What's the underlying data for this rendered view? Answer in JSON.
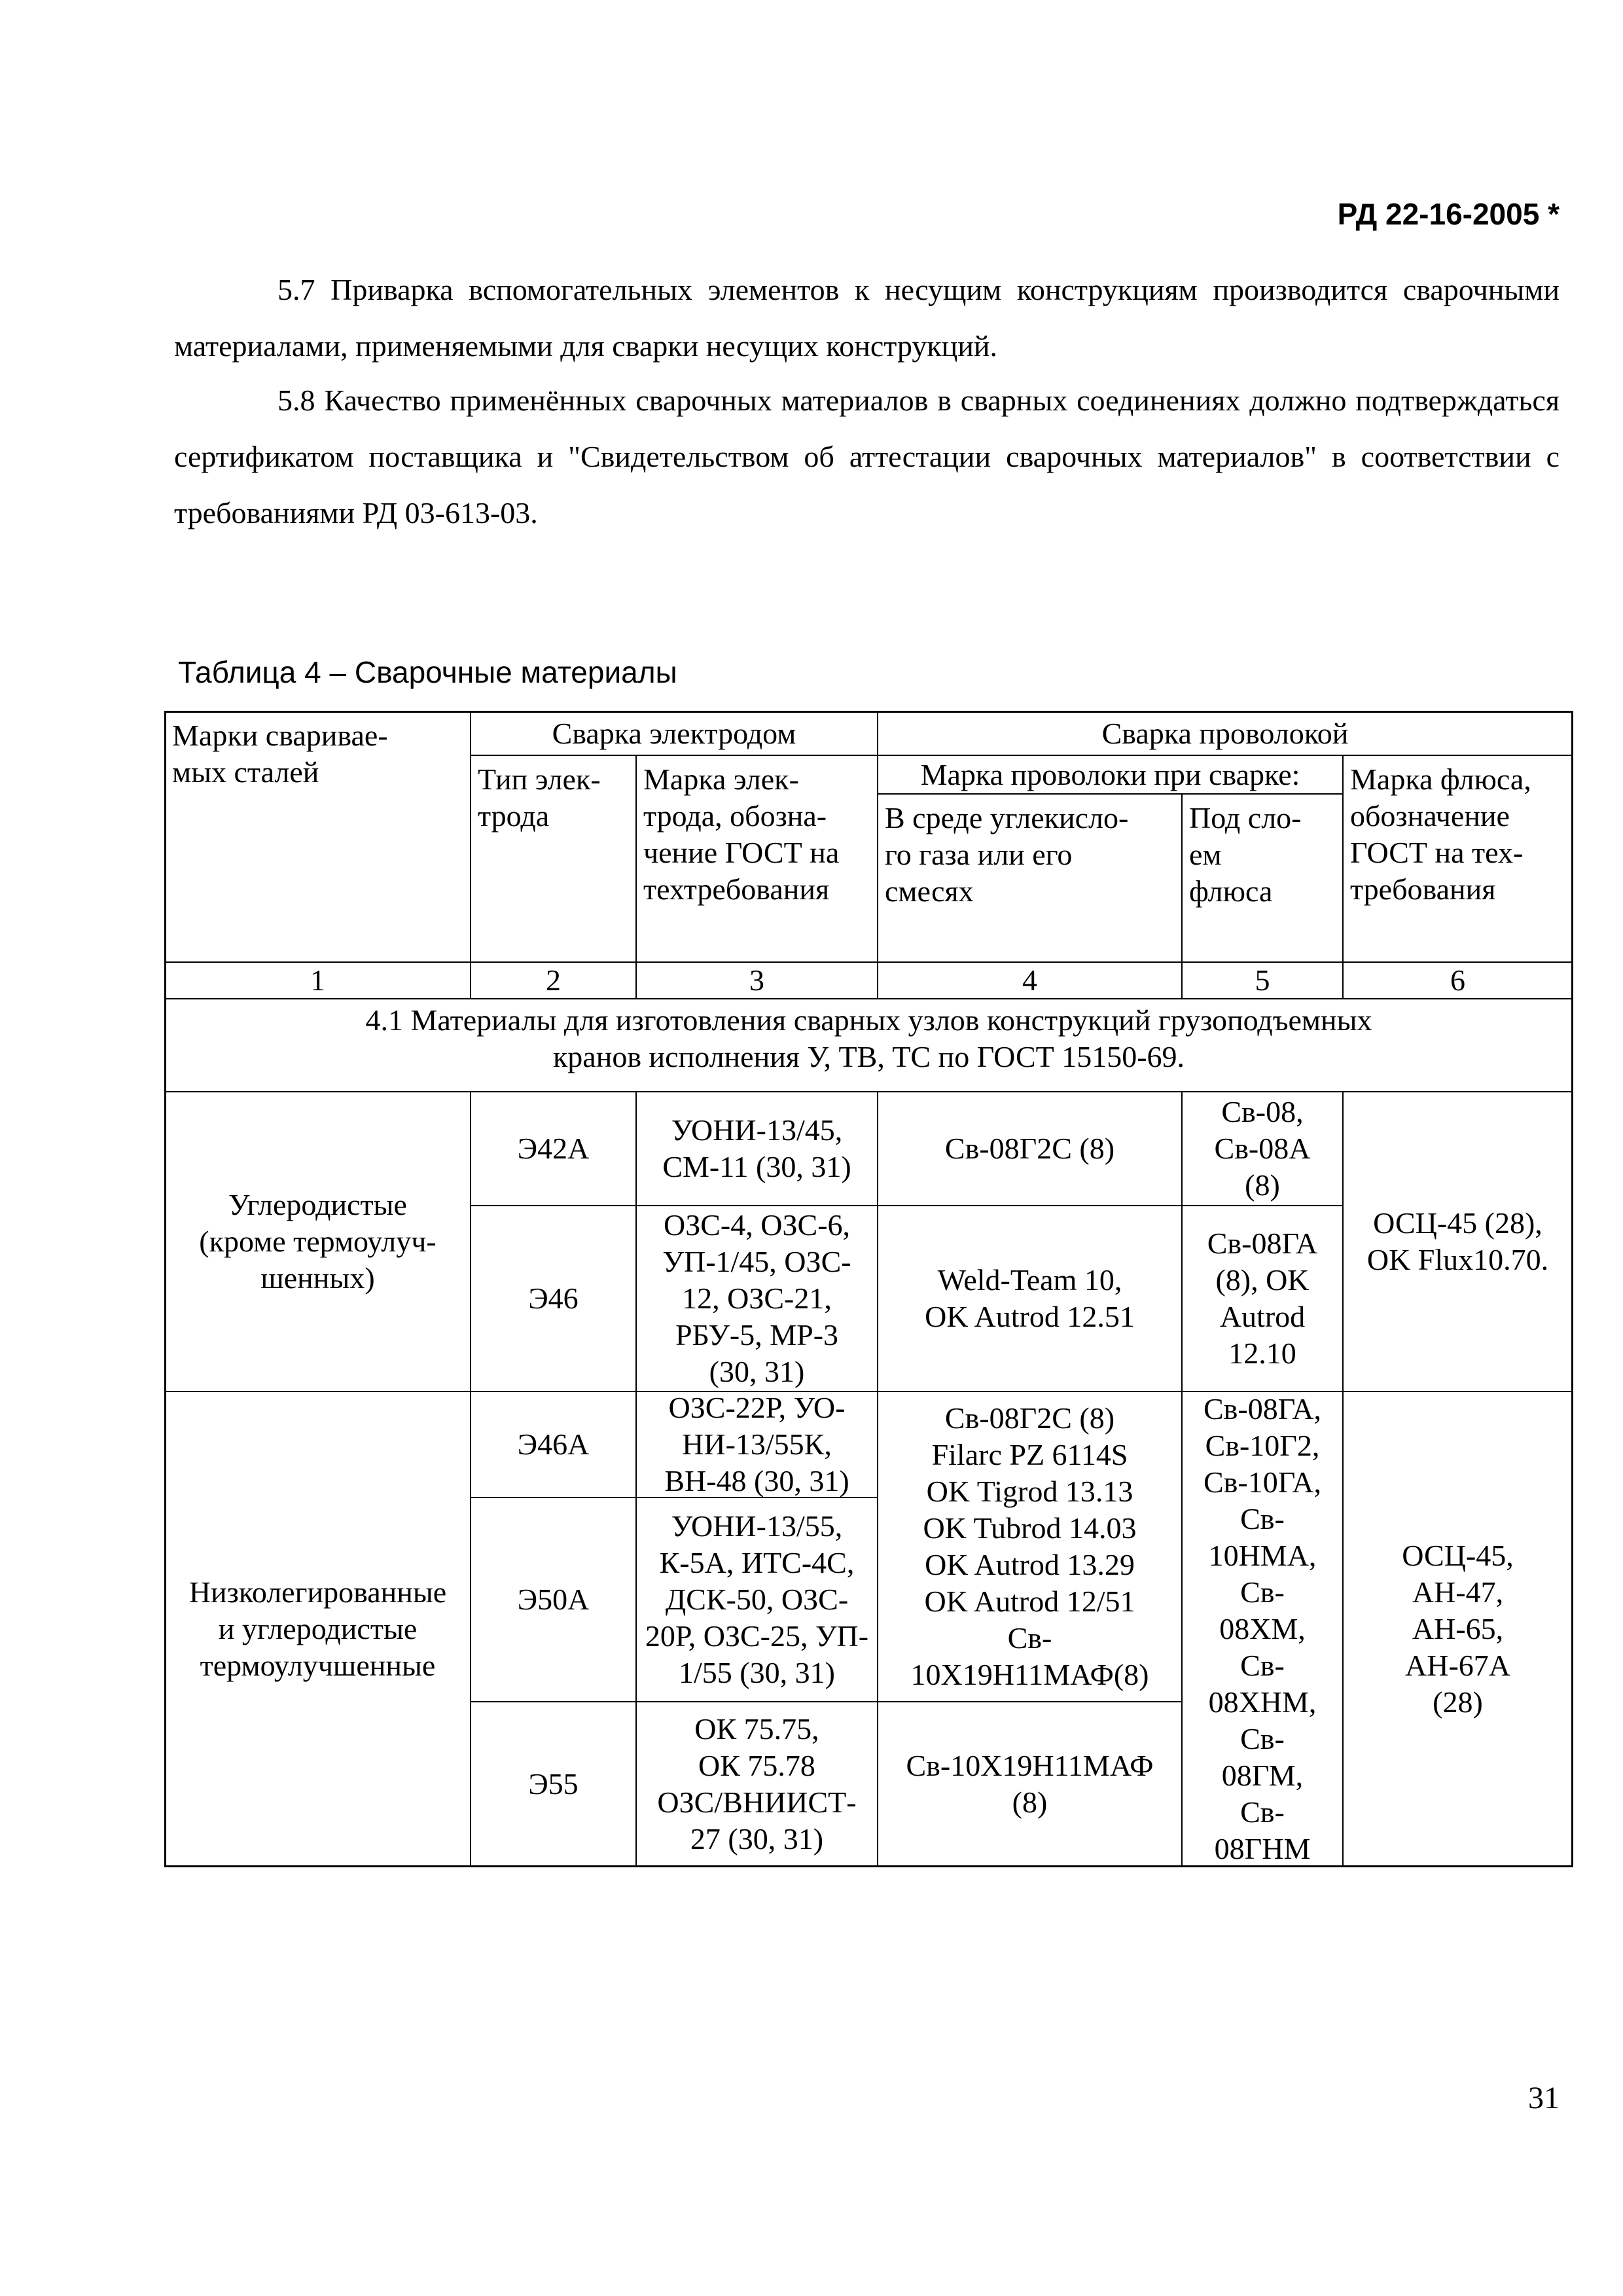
{
  "header": {
    "doc_code": "РД 22-16-2005 *"
  },
  "paragraphs": [
    "5.7 Приварка вспомогательных элементов к несущим конструкциям производится сварочными материалами, применяемыми для сварки несущих конструкций.",
    "5.8 Качество применённых сварочных материалов в сварных соединениях должно подтверждаться сертификатом поставщика и \"Свидетельством об аттестации сварочных материалов\" в соответствии с требованиями РД 03-613-03."
  ],
  "table": {
    "title": "Таблица 4 – Сварочные материалы",
    "headers": {
      "steel": "Марки сваривае-\nмых сталей",
      "electrode_group": "Сварка электродом",
      "wire_group": "Сварка проволокой",
      "electrode_type": "Тип элек-\nтрода",
      "electrode_brand": "Марка элек-\nтрода, обозна-\nчение ГОСТ на\nтехтребования",
      "wire_brand": "Марка проволоки при сварке:",
      "co2": "В среде углекисло-\nго газа или его\nсмесях",
      "flux_layer": "Под сло-\nем\nфлюса",
      "flux_brand": "Марка флюса,\nобозначение\nГОСТ на тех-\nтребования"
    },
    "column_numbers": [
      "1",
      "2",
      "3",
      "4",
      "5",
      "6"
    ],
    "section": "4.1 Материалы для изготовления сварных узлов конструкций грузоподъемных\nкранов исполнения У, ТВ, ТС по ГОСТ 15150-69.",
    "groups": [
      {
        "steel": "Углеродистые\n(кроме термоулуч-\nшенных)",
        "flux": "ОСЦ-45 (28),\nOK Flux10.70.",
        "rows": [
          {
            "type": "Э42А",
            "electrode": "УОНИ-13/45,\nСМ-11 (30, 31)",
            "co2": "Св-08Г2С (8)",
            "flux_wire": "Св-08,\nСв-08А\n(8)"
          },
          {
            "type": "Э46",
            "electrode": "ОЗС-4, ОЗС-6,\nУП-1/45, ОЗС-\n12, ОЗС-21,\nРБУ-5, МР-3\n(30, 31)",
            "co2": "Weld-Team 10,\nOK Autrod 12.51",
            "flux_wire": "Св-08ГА\n(8), OK\nAutrod\n12.10"
          }
        ]
      },
      {
        "steel": "Низколегированные\nи углеродистые\nтермоулучшенные",
        "flux": "ОСЦ-45,\nАН-47,\nАН-65,\nАН-67А\n(28)",
        "flux_wire": "Св-08ГА,\nСв-10Г2,\nСв-10ГА,\nСв-\n10НМА,\nСв-\n08ХМ,\nСв-\n08ХНМ,\nСв-\n08ГМ,\nСв-\n08ГНМ",
        "co2_merged": "Св-08Г2С (8)\nFilarc PZ 6114S\nOK Tigrod 13.13\nOK Tubrod 14.03\nOK Autrod 13.29\nOK Autrod 12/51\nСв-\n10Х19Н11МАФ(8)",
        "rows": [
          {
            "type": "Э46А",
            "electrode": "ОЗС-22Р, УО-\nНИ-13/55К,\nВН-48 (30, 31)"
          },
          {
            "type": "Э50А",
            "electrode": "УОНИ-13/55,\nК-5А, ИТС-4С,\nДСК-50, ОЗС-\n20Р, ОЗС-25, УП-\n1/55 (30, 31)"
          },
          {
            "type": "Э55",
            "electrode": "ОК 75.75,\nОК 75.78\nОЗС/ВНИИСТ-\n27 (30, 31)",
            "co2": "Св-10Х19Н11МАФ\n(8)"
          }
        ]
      }
    ]
  },
  "page_number": "31"
}
